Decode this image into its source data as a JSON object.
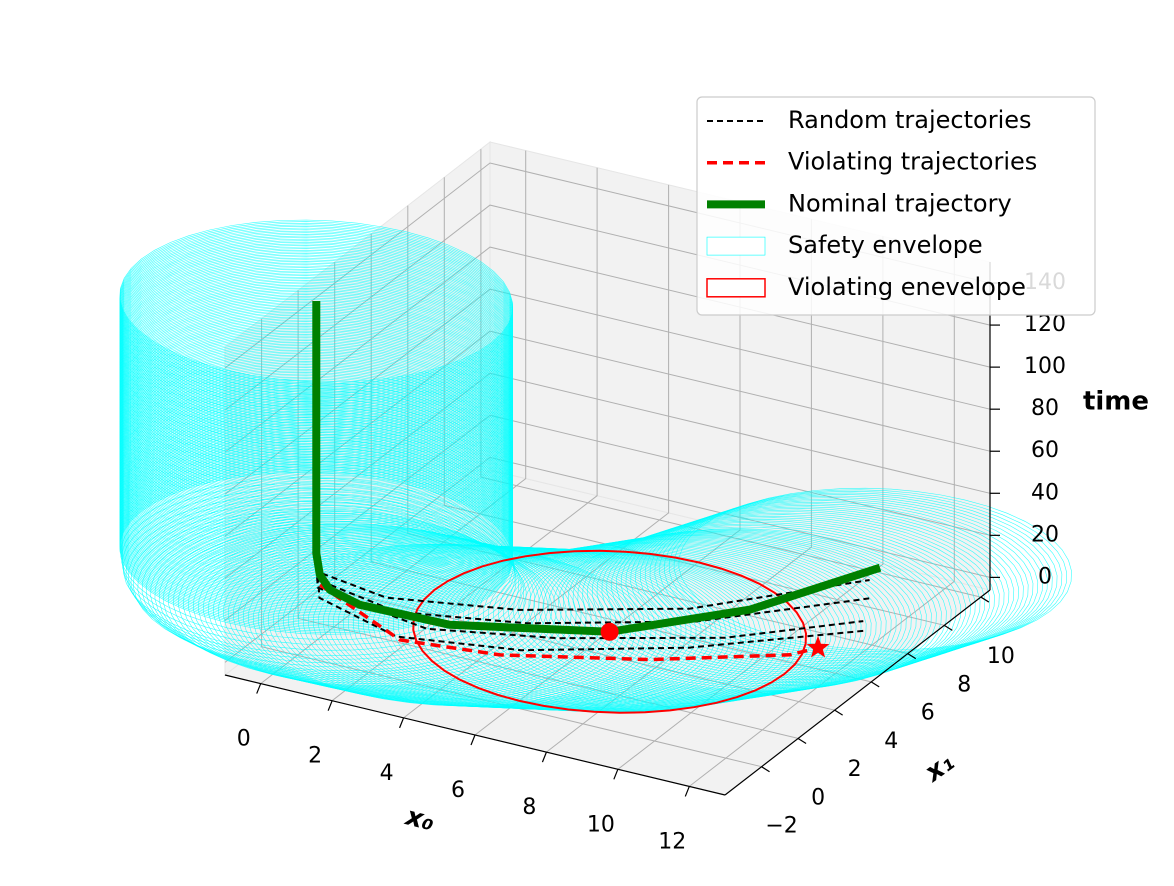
{
  "chart_data": {
    "type": "line3d",
    "xlabel": "x₀",
    "ylabel": "x₁",
    "zlabel": "time",
    "xlim": [
      -1,
      13
    ],
    "ylim": [
      -4,
      10.5
    ],
    "zlim": [
      -6,
      150
    ],
    "xticks": [
      0,
      2,
      4,
      6,
      8,
      10,
      12
    ],
    "yticks": [
      {
        "value": -2,
        "label": "−2"
      },
      0,
      2,
      4,
      6,
      8,
      10
    ],
    "zticks": [
      0,
      20,
      40,
      60,
      80,
      100,
      120,
      140
    ],
    "grid": true,
    "legend": "upper right",
    "series": [
      {
        "name": "Random trajectories",
        "color": "#000000",
        "style": "dashed",
        "trajectories": [
          {
            "x0": [
              -0.8,
              -0.5,
              2.5,
              5.5,
              9.0,
              11.5
            ],
            "x1": [
              0.5,
              0.1,
              0.2,
              1.5,
              3.8,
              6.5
            ],
            "t": [
              30,
              10,
              2,
              1,
              0,
              0
            ]
          },
          {
            "x0": [
              -0.8,
              -0.3,
              2.0,
              5.0,
              8.5,
              11.8
            ],
            "x1": [
              0.6,
              -0.2,
              -0.5,
              0.5,
              2.8,
              6.0
            ],
            "t": [
              25,
              8,
              1,
              0,
              0,
              0
            ]
          },
          {
            "x0": [
              -0.9,
              -0.6,
              1.5,
              4.5,
              8.0,
              11.0
            ],
            "x1": [
              0.7,
              0.3,
              0.5,
              1.8,
              4.2,
              7.8
            ],
            "t": [
              30,
              12,
              4,
              2,
              1,
              0
            ]
          },
          {
            "x0": [
              -0.9,
              -0.7,
              1.0,
              4.0,
              7.5,
              10.5
            ],
            "x1": [
              0.8,
              0.5,
              0.9,
              2.3,
              4.8,
              8.8
            ],
            "t": [
              28,
              14,
              6,
              3,
              1,
              0
            ]
          }
        ]
      },
      {
        "name": "Violating trajectories",
        "color": "#ff0000",
        "style": "dashed",
        "end_marker": "star",
        "trajectories": [
          {
            "x0": [
              -0.53,
              2.12,
              4.67,
              8.0,
              10.87,
              11.27
            ],
            "x1": [
              0.28,
              -0.52,
              -0.03,
              1.65,
              3.73,
              4.47
            ],
            "t": [
              10,
              0,
              0,
              0,
              0,
              0
            ]
          }
        ]
      },
      {
        "name": "Nominal trajectory",
        "color": "#008000",
        "style": "solid",
        "trajectories": [
          {
            "x0": [
              -0.9,
              -0.9,
              -0.9,
              -0.9,
              -0.9,
              -0.7,
              -0.3,
              0.58,
              2.94,
              6.49,
              8.82,
              10.38
            ],
            "x1": [
              0.8,
              0.8,
              0.8,
              0.8,
              0.8,
              0.6,
              0.37,
              0.29,
              0.6,
              2.41,
              5.54,
              9.6
            ],
            "t": [
              140,
              100,
              60,
              30,
              20,
              12,
              8,
              5,
              3,
              2,
              1,
              0
            ]
          }
        ]
      }
    ],
    "safety_envelope": {
      "name": "Safety envelope",
      "color": "#00ffff",
      "radius": 4.9
    },
    "violating_envelope": {
      "name": "Violating enevelope",
      "color": "#ff0000",
      "radius": 4.9,
      "center": {
        "x0": 6.49,
        "x1": 2.41,
        "t": 2
      }
    }
  }
}
